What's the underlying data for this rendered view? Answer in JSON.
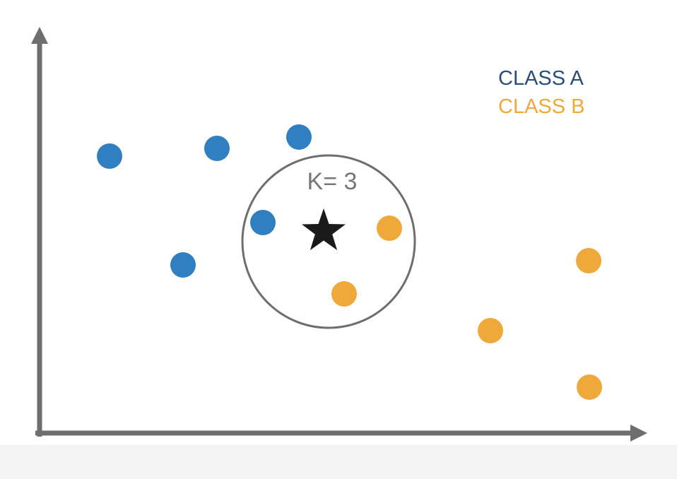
{
  "legend": {
    "class_a_label": "CLASS A",
    "class_b_label": "CLASS B"
  },
  "k_label": "K= 3",
  "colors": {
    "class_a": "#2f7fc1",
    "class_a_text": "#2a4e7a",
    "class_b": "#efa93a",
    "class_b_text": "#efa93a",
    "axis": "#6e6e6e",
    "circle": "#6e6e6e",
    "star": "#1a1a1a",
    "k_label": "#777777"
  },
  "points": {
    "class_a": [
      {
        "id": "a1"
      },
      {
        "id": "a2"
      },
      {
        "id": "a3"
      },
      {
        "id": "a4"
      },
      {
        "id": "a5"
      }
    ],
    "class_b": [
      {
        "id": "b1"
      },
      {
        "id": "b2"
      },
      {
        "id": "b3"
      },
      {
        "id": "b4"
      },
      {
        "id": "b5"
      }
    ]
  },
  "query_icon": "star-icon"
}
